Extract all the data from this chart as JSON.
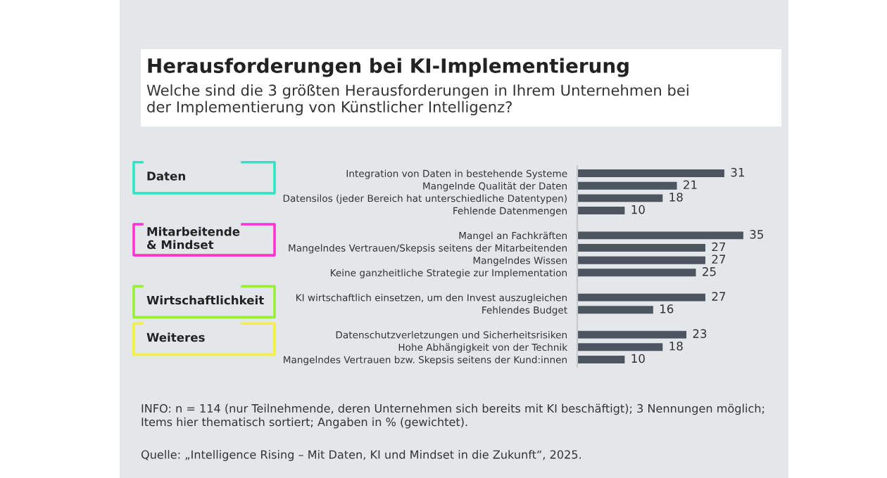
{
  "chart_data": {
    "type": "bar",
    "orientation": "horizontal",
    "title": "Herausforderungen bei KI-Implementierung",
    "subtitle": "Welche sind die 3 größten Herausforderungen in Ihrem Unternehmen bei\nder Implementierung von Künstlicher Intelligenz?",
    "categories": [
      "Integration von Daten in bestehende Systeme",
      "Mangelnde Qualität der Daten",
      "Datensilos (jeder Bereich hat unterschiedliche Datentypen)",
      "Fehlende Datenmengen",
      null,
      "Mangel an Fachkräften",
      "Mangelndes Vertrauen/Skepsis seitens der Mitarbeitenden",
      "Mangelndes Wissen",
      "Keine ganzheitliche Strategie zur Implementation",
      null,
      "KI wirtschaftlich einsetzen, um den Invest auszugleichen",
      "Fehlendes Budget",
      null,
      "Datenschutzverletzungen und Sicherheitsrisiken",
      "Hohe Abhängigkeit von der Technik",
      "Mangelndes Vertrauen bzw. Skepsis seitens der Kund:innen"
    ],
    "values": [
      31,
      21,
      18,
      10,
      null,
      35,
      27,
      27,
      25,
      null,
      27,
      16,
      null,
      23,
      18,
      10
    ],
    "color": "#4d5560",
    "data_labels": true,
    "annotations": [
      "Daten",
      "Mitarbeitende\n& Mindset",
      "Wirtschaftlichkeit",
      "Weiteres",
      "INFO: n = 114 (nur Teilnehmende, deren Unternehmen sich bereits mit KI beschäftigt); 3 Nennungen möglich;\nItems hier thematisch sortiert; Angaben in % (gewichtet).",
      "Quelle: „Intelligence Rising – Mit Daten, KI und Mindset in die Zukunft“, 2025."
    ]
  }
}
